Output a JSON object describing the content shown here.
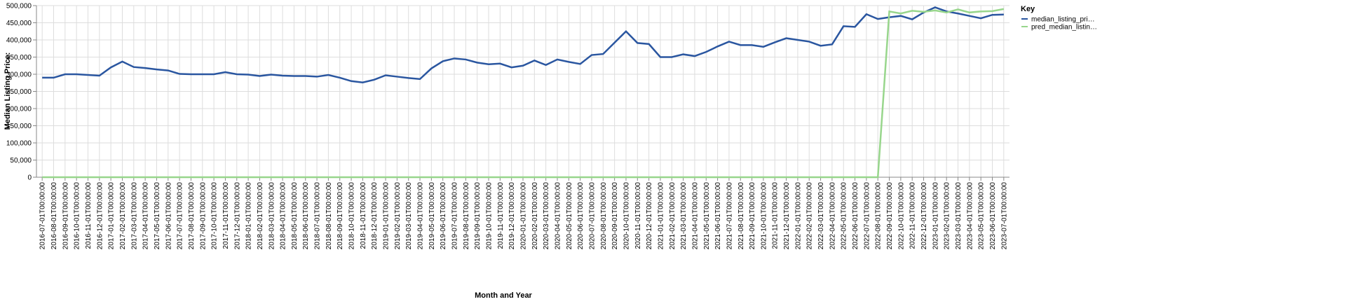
{
  "chart_data": {
    "type": "line",
    "x_label": "Month and Year",
    "y_label": "Median Listing Price:",
    "legend_title": "Key",
    "legend_position": "right",
    "grid": true,
    "categories": [
      "2016-07-01T00:00:00",
      "2016-08-01T00:00:00",
      "2016-09-01T00:00:00",
      "2016-10-01T00:00:00",
      "2016-11-01T00:00:00",
      "2016-12-01T00:00:00",
      "2017-01-01T00:00:00",
      "2017-02-01T00:00:00",
      "2017-03-01T00:00:00",
      "2017-04-01T00:00:00",
      "2017-05-01T00:00:00",
      "2017-06-01T00:00:00",
      "2017-07-01T00:00:00",
      "2017-08-01T00:00:00",
      "2017-09-01T00:00:00",
      "2017-10-01T00:00:00",
      "2017-11-01T00:00:00",
      "2017-12-01T00:00:00",
      "2018-01-01T00:00:00",
      "2018-02-01T00:00:00",
      "2018-03-01T00:00:00",
      "2018-04-01T00:00:00",
      "2018-05-01T00:00:00",
      "2018-06-01T00:00:00",
      "2018-07-01T00:00:00",
      "2018-08-01T00:00:00",
      "2018-09-01T00:00:00",
      "2018-10-01T00:00:00",
      "2018-11-01T00:00:00",
      "2018-12-01T00:00:00",
      "2019-01-01T00:00:00",
      "2019-02-01T00:00:00",
      "2019-03-01T00:00:00",
      "2019-04-01T00:00:00",
      "2019-05-01T00:00:00",
      "2019-06-01T00:00:00",
      "2019-07-01T00:00:00",
      "2019-08-01T00:00:00",
      "2019-09-01T00:00:00",
      "2019-10-01T00:00:00",
      "2019-11-01T00:00:00",
      "2019-12-01T00:00:00",
      "2020-01-01T00:00:00",
      "2020-02-01T00:00:00",
      "2020-03-01T00:00:00",
      "2020-04-01T00:00:00",
      "2020-05-01T00:00:00",
      "2020-06-01T00:00:00",
      "2020-07-01T00:00:00",
      "2020-08-01T00:00:00",
      "2020-09-01T00:00:00",
      "2020-10-01T00:00:00",
      "2020-11-01T00:00:00",
      "2020-12-01T00:00:00",
      "2021-01-01T00:00:00",
      "2021-02-01T00:00:00",
      "2021-03-01T00:00:00",
      "2021-04-01T00:00:00",
      "2021-05-01T00:00:00",
      "2021-06-01T00:00:00",
      "2021-07-01T00:00:00",
      "2021-08-01T00:00:00",
      "2021-09-01T00:00:00",
      "2021-10-01T00:00:00",
      "2021-11-01T00:00:00",
      "2021-12-01T00:00:00",
      "2022-01-01T00:00:00",
      "2022-02-01T00:00:00",
      "2022-03-01T00:00:00",
      "2022-04-01T00:00:00",
      "2022-05-01T00:00:00",
      "2022-06-01T00:00:00",
      "2022-07-01T00:00:00",
      "2022-08-01T00:00:00",
      "2022-09-01T00:00:00",
      "2022-10-01T00:00:00",
      "2022-11-01T00:00:00",
      "2022-12-01T00:00:00",
      "2023-01-01T00:00:00",
      "2023-02-01T00:00:00",
      "2023-03-01T00:00:00",
      "2023-04-01T00:00:00",
      "2023-05-01T00:00:00",
      "2023-06-01T00:00:00",
      "2023-07-01T00:00:00"
    ],
    "series": [
      {
        "name": "median_listing_pri…",
        "color": "#2a56a0",
        "values": [
          290000,
          290000,
          300000,
          300000,
          298000,
          296000,
          320000,
          337000,
          321000,
          318000,
          314000,
          311000,
          301000,
          300000,
          300000,
          300000,
          306000,
          300000,
          299000,
          295000,
          299000,
          296000,
          295000,
          295000,
          293000,
          298000,
          290000,
          280000,
          276000,
          284000,
          297000,
          293000,
          289000,
          286000,
          317000,
          338000,
          346000,
          343000,
          334000,
          329000,
          331000,
          320000,
          325000,
          340000,
          327000,
          343000,
          336000,
          330000,
          356000,
          359000,
          392000,
          425000,
          391000,
          388000,
          350000,
          350000,
          358000,
          353000,
          365000,
          381000,
          395000,
          385000,
          385000,
          380000,
          393000,
          405000,
          400000,
          395000,
          383000,
          387000,
          440000,
          438000,
          475000,
          461000,
          466000,
          470000,
          460000,
          480000,
          495000,
          483000,
          477000,
          470000,
          463000,
          473000,
          474000
        ]
      },
      {
        "name": "pred_median_listin…",
        "color": "#98d68c",
        "values": [
          0,
          0,
          0,
          0,
          0,
          0,
          0,
          0,
          0,
          0,
          0,
          0,
          0,
          0,
          0,
          0,
          0,
          0,
          0,
          0,
          0,
          0,
          0,
          0,
          0,
          0,
          0,
          0,
          0,
          0,
          0,
          0,
          0,
          0,
          0,
          0,
          0,
          0,
          0,
          0,
          0,
          0,
          0,
          0,
          0,
          0,
          0,
          0,
          0,
          0,
          0,
          0,
          0,
          0,
          0,
          0,
          0,
          0,
          0,
          0,
          0,
          0,
          0,
          0,
          0,
          0,
          0,
          0,
          0,
          0,
          0,
          0,
          0,
          0,
          483000,
          477000,
          485000,
          482000,
          486000,
          480000,
          489000,
          480000,
          483000,
          484000,
          490000
        ]
      }
    ],
    "ylim": [
      0,
      500000
    ],
    "yticks": [
      {
        "value": 0,
        "label": "0"
      },
      {
        "value": 50000,
        "label": "50,000"
      },
      {
        "value": 100000,
        "label": "100,000"
      },
      {
        "value": 150000,
        "label": "150,000"
      },
      {
        "value": 200000,
        "label": "200,000"
      },
      {
        "value": 250000,
        "label": "250,000"
      },
      {
        "value": 300000,
        "label": "300,000"
      },
      {
        "value": 350000,
        "label": "350,000"
      },
      {
        "value": 400000,
        "label": "400,000"
      },
      {
        "value": 450000,
        "label": "450,000"
      },
      {
        "value": 500000,
        "label": "500,000"
      }
    ]
  }
}
